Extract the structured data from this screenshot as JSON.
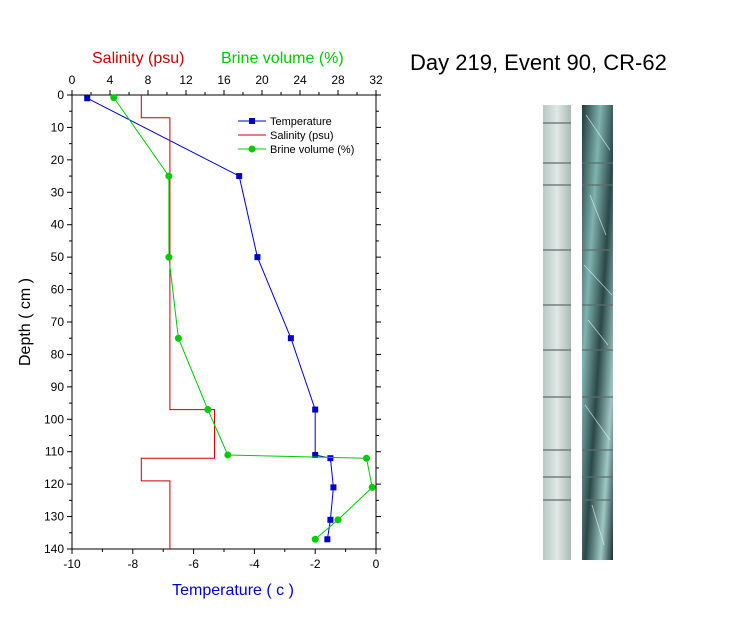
{
  "page": {
    "title": "Day 219, Event 90, CR-62"
  },
  "colors": {
    "temperature": "#0000cc",
    "salinity": "#cc0000",
    "brine": "#00cc00",
    "axis": "#000000"
  },
  "chart_data": {
    "type": "line",
    "orientation": "depth-profile",
    "yaxis": {
      "label": "Depth ( cm )",
      "range": [
        0,
        140
      ],
      "ticks": [
        0,
        10,
        20,
        30,
        40,
        50,
        60,
        70,
        80,
        90,
        100,
        110,
        120,
        130,
        140
      ],
      "inverted": true
    },
    "xaxis_bottom": {
      "label": "Temperature ( c )",
      "range": [
        -10,
        0
      ],
      "ticks": [
        -10,
        -8,
        -6,
        -4,
        -2,
        0
      ]
    },
    "xaxis_top": {
      "label_salinity": "Salinity (psu)",
      "label_brine": "Brine volume (%)",
      "range": [
        0,
        32
      ],
      "ticks": [
        0,
        4,
        8,
        12,
        16,
        20,
        24,
        28,
        32
      ]
    },
    "legend": {
      "placement": "top-right",
      "entries": [
        "Temperature",
        "Salinity (psu)",
        "Brine volume (%)"
      ]
    },
    "series": [
      {
        "name": "Temperature",
        "axis": "bottom",
        "marker": "square",
        "points": [
          {
            "x": -9.5,
            "y": 1
          },
          {
            "x": -4.5,
            "y": 25
          },
          {
            "x": -3.9,
            "y": 50
          },
          {
            "x": -2.8,
            "y": 75
          },
          {
            "x": -2.0,
            "y": 97
          },
          {
            "x": -2.0,
            "y": 111
          },
          {
            "x": -1.5,
            "y": 112
          },
          {
            "x": -1.4,
            "y": 121
          },
          {
            "x": -1.5,
            "y": 131
          },
          {
            "x": -1.6,
            "y": 137
          }
        ]
      },
      {
        "name": "Salinity (psu)",
        "axis": "top",
        "marker": "none",
        "step": true,
        "points": [
          {
            "x": 7.3,
            "y": 0
          },
          {
            "x": 7.3,
            "y": 7
          },
          {
            "x": 10.3,
            "y": 7
          },
          {
            "x": 10.3,
            "y": 97
          },
          {
            "x": 15.0,
            "y": 97
          },
          {
            "x": 15.0,
            "y": 112
          },
          {
            "x": 7.3,
            "y": 112
          },
          {
            "x": 7.3,
            "y": 119
          },
          {
            "x": 10.3,
            "y": 119
          },
          {
            "x": 10.3,
            "y": 140
          }
        ]
      },
      {
        "name": "Brine volume (%)",
        "axis": "top",
        "marker": "circle",
        "points": [
          {
            "x": 4.4,
            "y": 0.8
          },
          {
            "x": 10.2,
            "y": 25
          },
          {
            "x": 10.2,
            "y": 50
          },
          {
            "x": 11.2,
            "y": 75
          },
          {
            "x": 14.3,
            "y": 97
          },
          {
            "x": 16.4,
            "y": 111
          },
          {
            "x": 31.0,
            "y": 112
          },
          {
            "x": 31.6,
            "y": 121
          },
          {
            "x": 28.0,
            "y": 131
          },
          {
            "x": 25.6,
            "y": 137
          }
        ]
      }
    ]
  }
}
